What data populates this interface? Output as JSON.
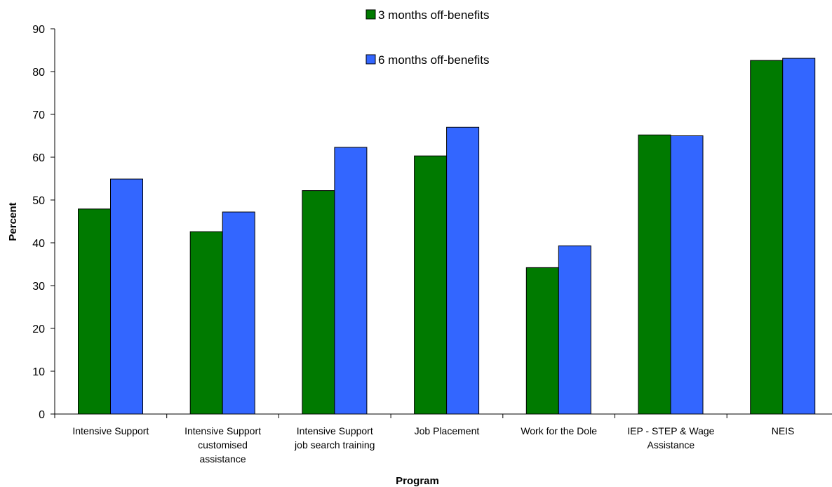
{
  "chart_data": {
    "type": "bar",
    "title": "",
    "xlabel": "Program",
    "ylabel": "Percent",
    "ylim": [
      0,
      90
    ],
    "yticks": [
      0,
      10,
      20,
      30,
      40,
      50,
      60,
      70,
      80,
      90
    ],
    "grid": false,
    "legend_position": "top-center",
    "categories": [
      [
        "Intensive Support"
      ],
      [
        "Intensive Support",
        "customised",
        "assistance"
      ],
      [
        "Intensive Support",
        "job search training"
      ],
      [
        "Job Placement"
      ],
      [
        "Work for the Dole"
      ],
      [
        "IEP - STEP & Wage",
        "Assistance"
      ],
      [
        "NEIS"
      ]
    ],
    "series": [
      {
        "name": "3 months off-benefits",
        "color": "#007A00",
        "values": [
          47.9,
          42.6,
          52.2,
          60.3,
          34.2,
          65.2,
          82.6
        ]
      },
      {
        "name": "6 months off-benefits",
        "color": "#3366FF",
        "values": [
          54.9,
          47.2,
          62.3,
          67.0,
          39.3,
          65.0,
          83.1
        ]
      }
    ]
  }
}
